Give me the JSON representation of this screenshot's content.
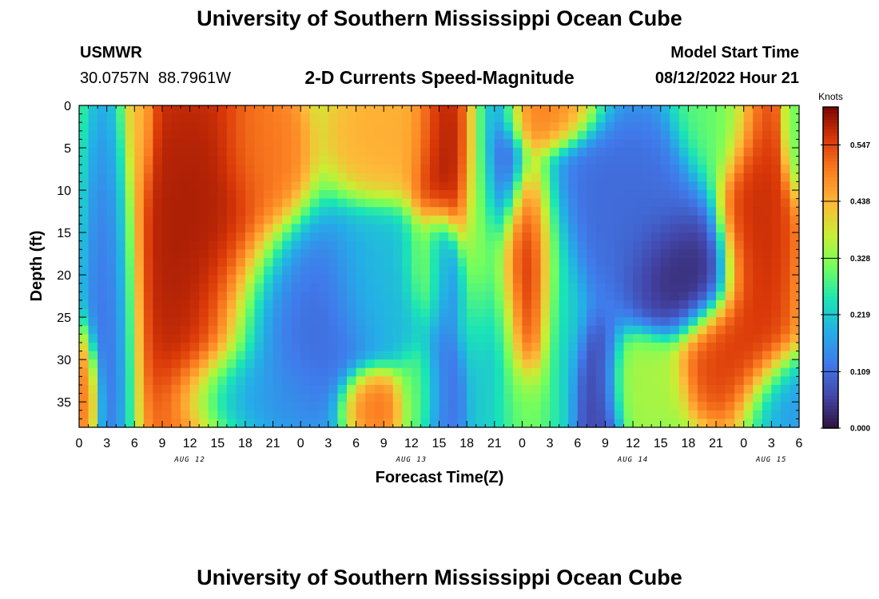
{
  "page": {
    "title": "University of Southern Mississippi Ocean Cube",
    "footer_title": "University of Southern Mississippi Ocean Cube"
  },
  "header": {
    "station_id": "USMWR",
    "station_coords": "30.0757N  88.7961W",
    "subtitle": "2-D Currents Speed-Magnitude",
    "model_start_label": "Model Start Time",
    "model_start_value": "08/12/2022 Hour 21"
  },
  "chart_data": {
    "type": "heatmap",
    "title": "2-D Currents Speed-Magnitude",
    "xlabel": "Forecast Time(Z)",
    "ylabel": "Depth (ft)",
    "x_hours_range": [
      0,
      78
    ],
    "x_ticks": [
      "0",
      "3",
      "6",
      "9",
      "12",
      "15",
      "18",
      "21",
      "0",
      "3",
      "6",
      "9",
      "12",
      "15",
      "18",
      "21",
      "0",
      "3",
      "6",
      "9",
      "12",
      "15",
      "18",
      "21",
      "0",
      "3",
      "6"
    ],
    "date_labels": [
      {
        "text": "AUG 12",
        "hour": 12
      },
      {
        "text": "AUG 13",
        "hour": 36
      },
      {
        "text": "AUG 14",
        "hour": 60
      },
      {
        "text": "AUG 15",
        "hour": 75
      }
    ],
    "y_ticks": [
      0,
      5,
      10,
      15,
      20,
      25,
      30,
      35
    ],
    "ylim": [
      38,
      0
    ],
    "colorbar": {
      "label": "Knots",
      "min": 0.0,
      "max": 0.62,
      "ticks": [
        "0.547",
        "0.438",
        "0.328",
        "0.219",
        "0.109",
        "0.000"
      ]
    },
    "grid_columns": 78,
    "grid_rows": 38,
    "background_value": 0.28,
    "features": [
      {
        "hour": 0.5,
        "depth": 34,
        "hw": 1.2,
        "hd": 5,
        "value": 0.52
      },
      {
        "hour": 3.5,
        "depth": 19,
        "hw": 2.2,
        "hd": 16,
        "value": 0.06
      },
      {
        "hour": 6.5,
        "depth": 2,
        "hw": 1.2,
        "hd": 7,
        "value": 0.42
      },
      {
        "hour": 12,
        "depth": 15,
        "hw": 6.5,
        "hd": 17,
        "value": 0.6
      },
      {
        "hour": 20,
        "depth": 5,
        "hw": 3,
        "hd": 6,
        "value": 0.5
      },
      {
        "hour": 24,
        "depth": 26,
        "hw": 6,
        "hd": 8,
        "value": 0.1
      },
      {
        "hour": 19,
        "depth": 34,
        "hw": 5,
        "hd": 4,
        "value": 0.15
      },
      {
        "hour": 33,
        "depth": 22,
        "hw": 4,
        "hd": 6,
        "value": 0.2
      },
      {
        "hour": 33,
        "depth": 3,
        "hw": 4,
        "hd": 5,
        "value": 0.45
      },
      {
        "hour": 40.5,
        "depth": 5,
        "hw": 3,
        "hd": 8,
        "value": 0.6
      },
      {
        "hour": 32,
        "depth": 35,
        "hw": 2.5,
        "hd": 3,
        "value": 0.52
      },
      {
        "hour": 37,
        "depth": 34,
        "hw": 2,
        "hd": 4,
        "value": 0.3
      },
      {
        "hour": 38,
        "depth": 20,
        "hw": 2,
        "hd": 4,
        "value": 0.35
      },
      {
        "hour": 39.5,
        "depth": 20,
        "hw": 1.5,
        "hd": 5,
        "value": 0.1
      },
      {
        "hour": 39.5,
        "depth": 34,
        "hw": 1.8,
        "hd": 5,
        "value": 0.1
      },
      {
        "hour": 43.5,
        "depth": 14,
        "hw": 1.5,
        "hd": 12,
        "value": 0.35
      },
      {
        "hour": 45,
        "depth": 5,
        "hw": 2.2,
        "hd": 9,
        "value": 0.05
      },
      {
        "hour": 45,
        "depth": 28,
        "hw": 2.5,
        "hd": 9,
        "value": 0.18
      },
      {
        "hour": 48.5,
        "depth": 22,
        "hw": 2.8,
        "hd": 10,
        "value": 0.6
      },
      {
        "hour": 48.5,
        "depth": 35,
        "hw": 3,
        "hd": 4,
        "value": 0.28
      },
      {
        "hour": 50,
        "depth": 1,
        "hw": 4,
        "hd": 3,
        "value": 0.5
      },
      {
        "hour": 52,
        "depth": 26,
        "hw": 2,
        "hd": 10,
        "value": 0.2
      },
      {
        "hour": 56,
        "depth": 34,
        "hw": 2,
        "hd": 6,
        "value": 0.05
      },
      {
        "hour": 59,
        "depth": 12,
        "hw": 6,
        "hd": 8,
        "value": 0.1
      },
      {
        "hour": 65,
        "depth": 19.5,
        "hw": 4,
        "hd": 5,
        "value": 0.02
      },
      {
        "hour": 61,
        "depth": 33,
        "hw": 3,
        "hd": 4,
        "value": 0.35
      },
      {
        "hour": 69,
        "depth": 2,
        "hw": 3,
        "hd": 5,
        "value": 0.3
      },
      {
        "hour": 73.5,
        "depth": 14,
        "hw": 2.8,
        "hd": 14,
        "value": 0.58
      },
      {
        "hour": 71,
        "depth": 30,
        "hw": 4,
        "hd": 5,
        "value": 0.56
      },
      {
        "hour": 76,
        "depth": 35,
        "hw": 3,
        "hd": 4,
        "value": 0.15
      },
      {
        "hour": 77.5,
        "depth": 3,
        "hw": 1,
        "hd": 5,
        "value": 0.3
      }
    ]
  }
}
